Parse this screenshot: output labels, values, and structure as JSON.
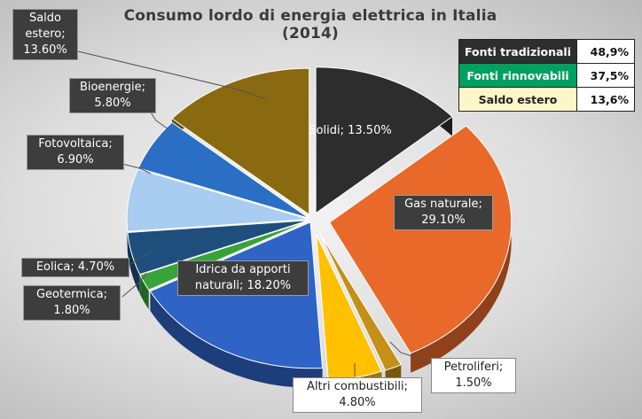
{
  "chart_data": {
    "type": "pie",
    "title": "Consumo lordo di energia elettrica in Italia (2014)",
    "slices": [
      {
        "label": "Solidi; 13.50%",
        "name": "Solidi",
        "value": 13.5,
        "color": "#2d2d2d"
      },
      {
        "label": "Gas naturale; 29.10%",
        "name": "Gas naturale",
        "value": 29.1,
        "color": "#e8692a"
      },
      {
        "label": "Petroliferi; 1.50%",
        "name": "Petroliferi",
        "value": 1.5,
        "color": "#c59018"
      },
      {
        "label": "Altri combustibili; 4.80%",
        "name": "Altri combustibili",
        "value": 4.8,
        "color": "#ffc000"
      },
      {
        "label": "Idrica da apporti naturali; 18.20%",
        "name": "Idrica da apporti naturali",
        "value": 18.2,
        "color": "#2f63c6"
      },
      {
        "label": "Geotermica; 1.80%",
        "name": "Geotermica",
        "value": 1.8,
        "color": "#38a33a"
      },
      {
        "label": "Eolica; 4.70%",
        "name": "Eolica",
        "value": 4.7,
        "color": "#1e4f7c"
      },
      {
        "label": "Fotovoltaica; 6.90%",
        "name": "Fotovoltaica",
        "value": 6.9,
        "color": "#a9cdf0"
      },
      {
        "label": "Bioenergie; 5.80%",
        "name": "Bioenergie",
        "value": 5.8,
        "color": "#2a6fc4"
      },
      {
        "label": "Saldo estero; 13.60%",
        "name": "Saldo estero",
        "value": 13.6,
        "color": "#8a6a10"
      }
    ],
    "summary_table": [
      {
        "name": "Fonti tradizionali",
        "value": "48,9%",
        "color": "#2e2e2e"
      },
      {
        "name": "Fonti rinnovabili",
        "value": "37,5%",
        "color": "#00a060"
      },
      {
        "name": "Saldo estero",
        "value": "13,6%",
        "color": "#fdf6c8"
      }
    ]
  },
  "labels": {
    "solidi": "Solidi; 13.50%",
    "gas_1": "Gas naturale;",
    "gas_2": "29.10%",
    "petroliferi_1": "Petroliferi;",
    "petroliferi_2": "1.50%",
    "altri_1": "Altri combustibili;",
    "altri_2": "4.80%",
    "idrica_1": "Idrica da apporti",
    "idrica_2": "naturali; 18.20%",
    "geotermica_1": "Geotermica;",
    "geotermica_2": "1.80%",
    "eolica": "Eolica; 4.70%",
    "fotovoltaica_1": "Fotovoltaica;",
    "fotovoltaica_2": "6.90%",
    "bioenergie_1": "Bioenergie;",
    "bioenergie_2": "5.80%",
    "saldo_1": "Saldo",
    "saldo_2": "estero;",
    "saldo_3": "13.60%"
  }
}
